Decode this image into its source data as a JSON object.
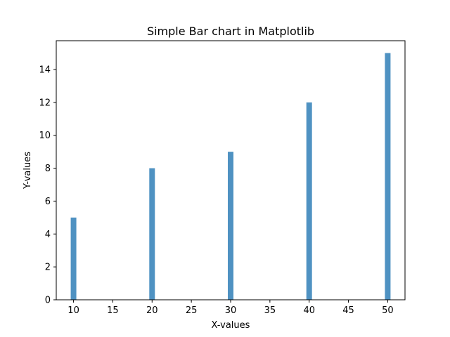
{
  "chart_data": {
    "type": "bar",
    "title": "Simple Bar chart in Matplotlib",
    "xlabel": "X-values",
    "ylabel": "Y-values",
    "x": [
      10,
      20,
      30,
      40,
      50
    ],
    "values": [
      5,
      8,
      9,
      12,
      15
    ],
    "bar_color": "#4f92c2",
    "xlim": [
      7.8,
      52.2
    ],
    "ylim": [
      0,
      15.75
    ],
    "xticks": [
      10,
      15,
      20,
      25,
      30,
      35,
      40,
      45,
      50
    ],
    "yticks": [
      0,
      2,
      4,
      6,
      8,
      10,
      12,
      14
    ],
    "grid": false,
    "legend": "none"
  }
}
